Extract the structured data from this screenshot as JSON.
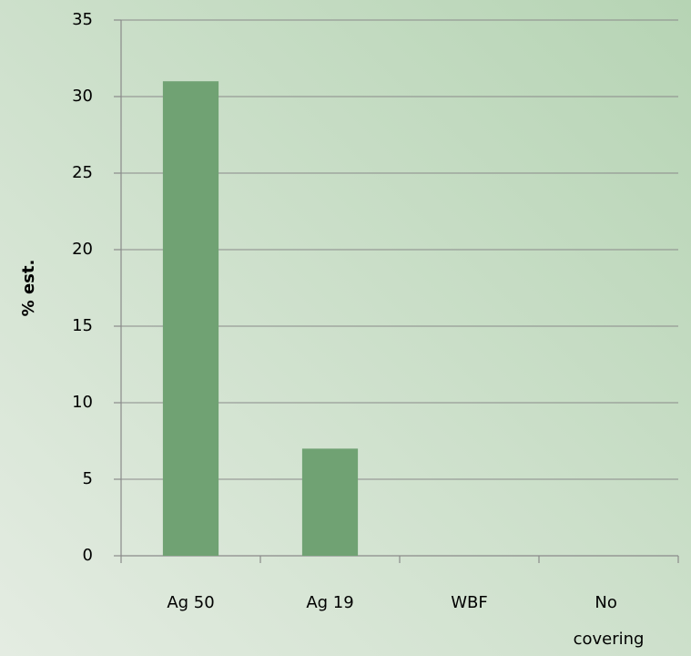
{
  "chart_data": {
    "type": "bar",
    "ylabel": "% est.",
    "categories": [
      "Ag 50",
      "Ag 19",
      "WBF",
      "No covering"
    ],
    "values": [
      31,
      7,
      0,
      0
    ],
    "color": "#70a273",
    "ylim": [
      0,
      35
    ],
    "yticks": [
      0,
      5,
      10,
      15,
      20,
      25,
      30,
      35
    ],
    "grid": true
  }
}
